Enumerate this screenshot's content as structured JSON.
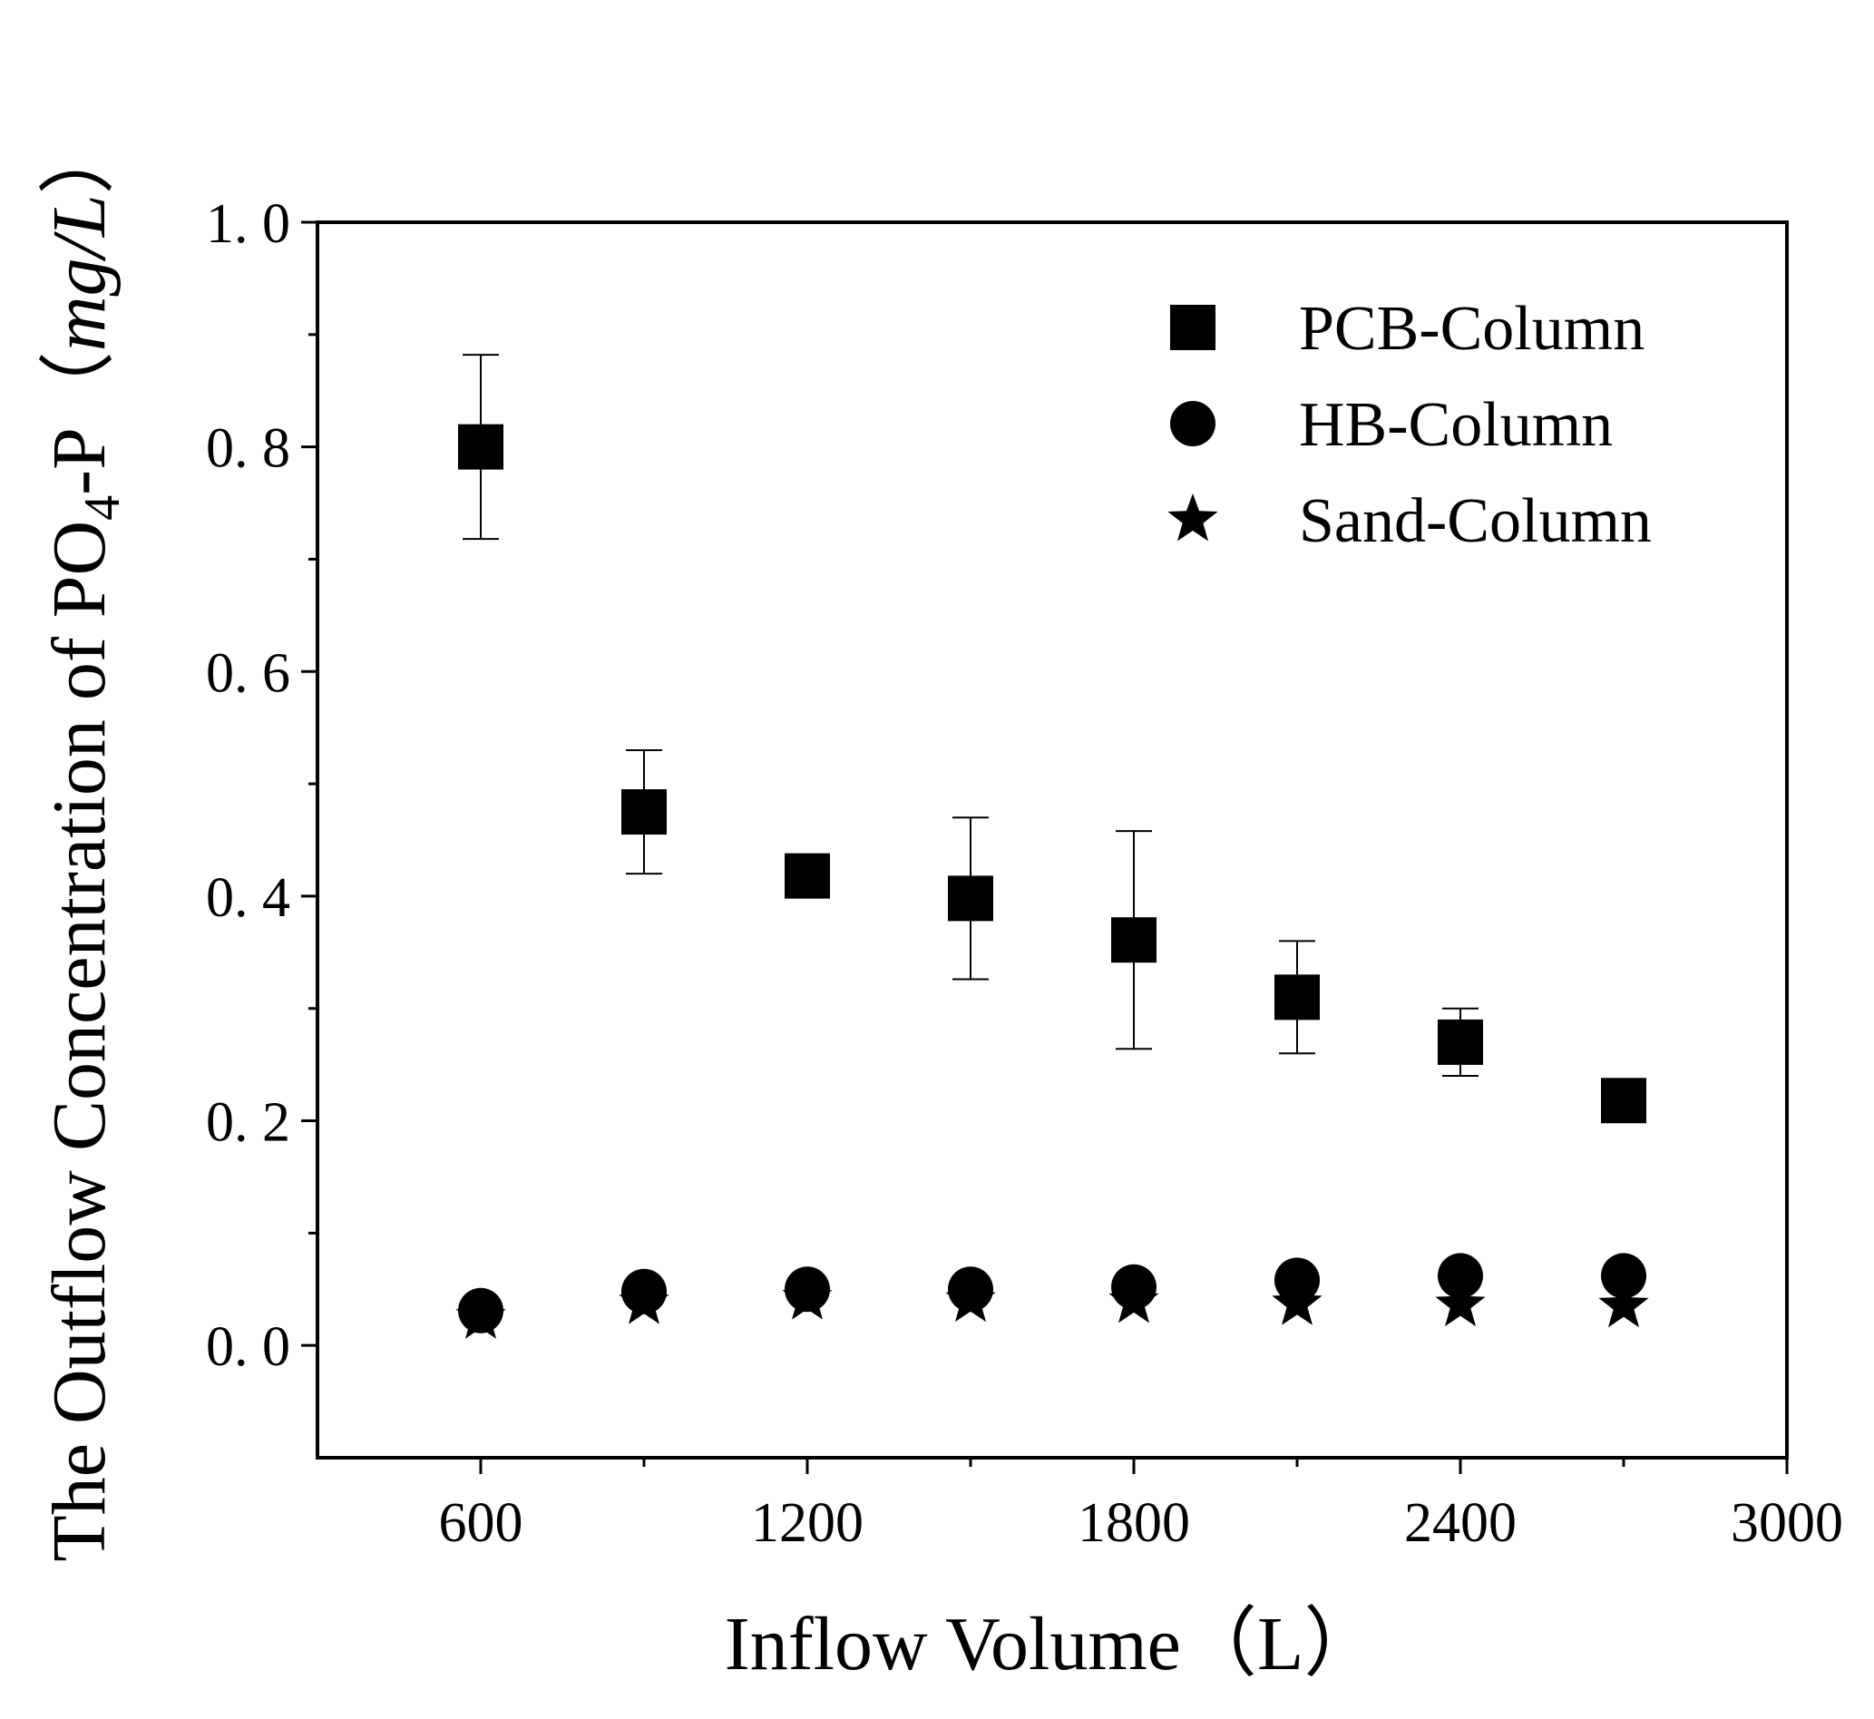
{
  "chart_data": {
    "type": "scatter",
    "xlabel": "Inflow Volume（L）",
    "ylabel": {
      "prefix": "The Outflow Concentration of PO",
      "subscript": "4",
      "suffix": "-P（",
      "unit": "mg/L",
      "close": "）"
    },
    "xlim": [
      300,
      3000
    ],
    "ylim": [
      -0.1,
      1.0
    ],
    "x_ticks": [
      600,
      1200,
      1800,
      2400,
      3000
    ],
    "x_tick_labels": [
      "600",
      "1200",
      "1800",
      "2400",
      "3000"
    ],
    "x_minor_ticks": [
      900,
      1500,
      2100,
      2700
    ],
    "y_ticks": [
      0.0,
      0.2,
      0.4,
      0.6,
      0.8,
      1.0
    ],
    "y_tick_labels": [
      "0. 0",
      "0. 2",
      "0. 4",
      "0. 6",
      "0. 8",
      "1. 0"
    ],
    "y_minor_ticks": [
      0.1,
      0.3,
      0.5,
      0.7,
      0.9
    ],
    "grid": false,
    "legend_position": "top-right",
    "x": [
      600,
      900,
      1200,
      1500,
      1800,
      2100,
      2400,
      2700
    ],
    "series": [
      {
        "name": "PCB-Column",
        "marker": "square",
        "values": [
          0.8,
          0.475,
          0.418,
          0.398,
          0.361,
          0.31,
          0.27,
          0.218
        ],
        "error": [
          0.082,
          0.055,
          0.018,
          0.072,
          0.097,
          0.05,
          0.03,
          0.016
        ]
      },
      {
        "name": "HB-Column",
        "marker": "circle",
        "values": [
          0.031,
          0.048,
          0.05,
          0.05,
          0.052,
          0.058,
          0.062,
          0.062
        ]
      },
      {
        "name": "Sand-Column",
        "marker": "star",
        "values": [
          0.025,
          0.038,
          0.042,
          0.04,
          0.039,
          0.037,
          0.036,
          0.035
        ]
      }
    ]
  }
}
